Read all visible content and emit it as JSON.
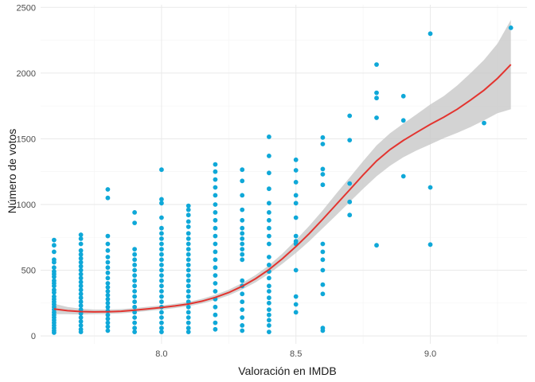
{
  "chart_data": {
    "type": "scatter",
    "title": "",
    "xlabel": "Valoración en IMDB",
    "ylabel": "Número de votos",
    "xlim": [
      7.55,
      9.36
    ],
    "ylim": [
      -60,
      2520
    ],
    "xticks": [
      8.0,
      8.5,
      9.0
    ],
    "xtick_labels": [
      "8.0",
      "8.5",
      "9.0"
    ],
    "xminor": [
      7.75,
      8.25,
      8.75,
      9.25
    ],
    "yticks": [
      0,
      500,
      1000,
      1500,
      2000,
      2500
    ],
    "ytick_labels": [
      "0",
      "500",
      "1000",
      "1500",
      "2000",
      "2500"
    ],
    "yminor": [
      250,
      750,
      1250,
      1750,
      2250
    ],
    "grid": true,
    "legend": "none",
    "colors": {
      "points": "#0fa8d8",
      "smooth": "#e3342f",
      "band": "#c8c8c8"
    },
    "points": [
      [
        7.6,
        730
      ],
      [
        7.6,
        690
      ],
      [
        7.6,
        640
      ],
      [
        7.6,
        580
      ],
      [
        7.6,
        560
      ],
      [
        7.6,
        520
      ],
      [
        7.6,
        490
      ],
      [
        7.6,
        470
      ],
      [
        7.6,
        450
      ],
      [
        7.6,
        420
      ],
      [
        7.6,
        400
      ],
      [
        7.6,
        380
      ],
      [
        7.6,
        350
      ],
      [
        7.6,
        330
      ],
      [
        7.6,
        300
      ],
      [
        7.6,
        280
      ],
      [
        7.6,
        260
      ],
      [
        7.6,
        240
      ],
      [
        7.6,
        220
      ],
      [
        7.6,
        200
      ],
      [
        7.6,
        180
      ],
      [
        7.6,
        160
      ],
      [
        7.6,
        140
      ],
      [
        7.6,
        120
      ],
      [
        7.6,
        100
      ],
      [
        7.6,
        80
      ],
      [
        7.6,
        60
      ],
      [
        7.6,
        40
      ],
      [
        7.6,
        25
      ],
      [
        7.7,
        770
      ],
      [
        7.7,
        740
      ],
      [
        7.7,
        700
      ],
      [
        7.7,
        650
      ],
      [
        7.7,
        620
      ],
      [
        7.7,
        590
      ],
      [
        7.7,
        560
      ],
      [
        7.7,
        530
      ],
      [
        7.7,
        500
      ],
      [
        7.7,
        470
      ],
      [
        7.7,
        440
      ],
      [
        7.7,
        410
      ],
      [
        7.7,
        380
      ],
      [
        7.7,
        350
      ],
      [
        7.7,
        320
      ],
      [
        7.7,
        290
      ],
      [
        7.7,
        260
      ],
      [
        7.7,
        230
      ],
      [
        7.7,
        200
      ],
      [
        7.7,
        170
      ],
      [
        7.7,
        140
      ],
      [
        7.7,
        110
      ],
      [
        7.7,
        80
      ],
      [
        7.7,
        50
      ],
      [
        7.7,
        30
      ],
      [
        7.8,
        1115
      ],
      [
        7.8,
        1050
      ],
      [
        7.8,
        760
      ],
      [
        7.8,
        700
      ],
      [
        7.8,
        650
      ],
      [
        7.8,
        600
      ],
      [
        7.8,
        560
      ],
      [
        7.8,
        520
      ],
      [
        7.8,
        480
      ],
      [
        7.8,
        440
      ],
      [
        7.8,
        400
      ],
      [
        7.8,
        370
      ],
      [
        7.8,
        340
      ],
      [
        7.8,
        310
      ],
      [
        7.8,
        280
      ],
      [
        7.8,
        250
      ],
      [
        7.8,
        220
      ],
      [
        7.8,
        190
      ],
      [
        7.8,
        160
      ],
      [
        7.8,
        130
      ],
      [
        7.8,
        100
      ],
      [
        7.8,
        70
      ],
      [
        7.8,
        40
      ],
      [
        7.9,
        940
      ],
      [
        7.9,
        860
      ],
      [
        7.9,
        660
      ],
      [
        7.9,
        620
      ],
      [
        7.9,
        580
      ],
      [
        7.9,
        540
      ],
      [
        7.9,
        500
      ],
      [
        7.9,
        460
      ],
      [
        7.9,
        420
      ],
      [
        7.9,
        380
      ],
      [
        7.9,
        340
      ],
      [
        7.9,
        300
      ],
      [
        7.9,
        260
      ],
      [
        7.9,
        220
      ],
      [
        7.9,
        180
      ],
      [
        7.9,
        140
      ],
      [
        7.9,
        100
      ],
      [
        7.9,
        60
      ],
      [
        7.9,
        30
      ],
      [
        8.0,
        1265
      ],
      [
        8.0,
        1040
      ],
      [
        8.0,
        1010
      ],
      [
        8.0,
        900
      ],
      [
        8.0,
        820
      ],
      [
        8.0,
        780
      ],
      [
        8.0,
        740
      ],
      [
        8.0,
        700
      ],
      [
        8.0,
        660
      ],
      [
        8.0,
        620
      ],
      [
        8.0,
        580
      ],
      [
        8.0,
        540
      ],
      [
        8.0,
        500
      ],
      [
        8.0,
        460
      ],
      [
        8.0,
        420
      ],
      [
        8.0,
        380
      ],
      [
        8.0,
        340
      ],
      [
        8.0,
        300
      ],
      [
        8.0,
        260
      ],
      [
        8.0,
        220
      ],
      [
        8.0,
        180
      ],
      [
        8.0,
        140
      ],
      [
        8.0,
        100
      ],
      [
        8.0,
        60
      ],
      [
        8.0,
        30
      ],
      [
        8.1,
        990
      ],
      [
        8.1,
        960
      ],
      [
        8.1,
        920
      ],
      [
        8.1,
        870
      ],
      [
        8.1,
        830
      ],
      [
        8.1,
        780
      ],
      [
        8.1,
        740
      ],
      [
        8.1,
        700
      ],
      [
        8.1,
        660
      ],
      [
        8.1,
        620
      ],
      [
        8.1,
        580
      ],
      [
        8.1,
        540
      ],
      [
        8.1,
        500
      ],
      [
        8.1,
        460
      ],
      [
        8.1,
        420
      ],
      [
        8.1,
        380
      ],
      [
        8.1,
        340
      ],
      [
        8.1,
        300
      ],
      [
        8.1,
        260
      ],
      [
        8.1,
        220
      ],
      [
        8.1,
        180
      ],
      [
        8.1,
        140
      ],
      [
        8.1,
        100
      ],
      [
        8.1,
        60
      ],
      [
        8.1,
        30
      ],
      [
        8.2,
        1305
      ],
      [
        8.2,
        1250
      ],
      [
        8.2,
        1190
      ],
      [
        8.2,
        1130
      ],
      [
        8.2,
        1070
      ],
      [
        8.2,
        1000
      ],
      [
        8.2,
        940
      ],
      [
        8.2,
        880
      ],
      [
        8.2,
        820
      ],
      [
        8.2,
        760
      ],
      [
        8.2,
        700
      ],
      [
        8.2,
        640
      ],
      [
        8.2,
        580
      ],
      [
        8.2,
        520
      ],
      [
        8.2,
        460
      ],
      [
        8.2,
        400
      ],
      [
        8.2,
        340
      ],
      [
        8.2,
        280
      ],
      [
        8.2,
        220
      ],
      [
        8.2,
        160
      ],
      [
        8.2,
        100
      ],
      [
        8.2,
        50
      ],
      [
        8.3,
        1265
      ],
      [
        8.3,
        1180
      ],
      [
        8.3,
        1070
      ],
      [
        8.3,
        960
      ],
      [
        8.3,
        880
      ],
      [
        8.3,
        820
      ],
      [
        8.3,
        780
      ],
      [
        8.3,
        740
      ],
      [
        8.3,
        700
      ],
      [
        8.3,
        660
      ],
      [
        8.3,
        620
      ],
      [
        8.3,
        580
      ],
      [
        8.3,
        420
      ],
      [
        8.3,
        380
      ],
      [
        8.3,
        320
      ],
      [
        8.3,
        260
      ],
      [
        8.3,
        200
      ],
      [
        8.3,
        140
      ],
      [
        8.3,
        80
      ],
      [
        8.3,
        40
      ],
      [
        8.4,
        1515
      ],
      [
        8.4,
        1370
      ],
      [
        8.4,
        1240
      ],
      [
        8.4,
        1120
      ],
      [
        8.4,
        1010
      ],
      [
        8.4,
        940
      ],
      [
        8.4,
        880
      ],
      [
        8.4,
        820
      ],
      [
        8.4,
        760
      ],
      [
        8.4,
        700
      ],
      [
        8.4,
        600
      ],
      [
        8.4,
        540
      ],
      [
        8.4,
        490
      ],
      [
        8.4,
        440
      ],
      [
        8.4,
        380
      ],
      [
        8.4,
        340
      ],
      [
        8.4,
        290
      ],
      [
        8.4,
        250
      ],
      [
        8.4,
        200
      ],
      [
        8.4,
        160
      ],
      [
        8.4,
        120
      ],
      [
        8.4,
        80
      ],
      [
        8.4,
        30
      ],
      [
        8.5,
        1340
      ],
      [
        8.5,
        1260
      ],
      [
        8.5,
        1170
      ],
      [
        8.5,
        1070
      ],
      [
        8.5,
        1010
      ],
      [
        8.5,
        900
      ],
      [
        8.5,
        760
      ],
      [
        8.5,
        720
      ],
      [
        8.5,
        700
      ],
      [
        8.5,
        500
      ],
      [
        8.5,
        300
      ],
      [
        8.5,
        240
      ],
      [
        8.5,
        180
      ],
      [
        8.6,
        1510
      ],
      [
        8.6,
        1460
      ],
      [
        8.6,
        1270
      ],
      [
        8.6,
        1230
      ],
      [
        8.6,
        1150
      ],
      [
        8.6,
        700
      ],
      [
        8.6,
        640
      ],
      [
        8.6,
        580
      ],
      [
        8.6,
        500
      ],
      [
        8.6,
        390
      ],
      [
        8.6,
        320
      ],
      [
        8.6,
        60
      ],
      [
        8.6,
        40
      ],
      [
        8.7,
        1675
      ],
      [
        8.7,
        1490
      ],
      [
        8.7,
        1160
      ],
      [
        8.7,
        1020
      ],
      [
        8.7,
        920
      ],
      [
        8.8,
        2065
      ],
      [
        8.8,
        1850
      ],
      [
        8.8,
        1810
      ],
      [
        8.8,
        1660
      ],
      [
        8.8,
        690
      ],
      [
        8.9,
        1825
      ],
      [
        8.9,
        1640
      ],
      [
        8.9,
        1215
      ],
      [
        9.0,
        2300
      ],
      [
        9.0,
        1130
      ],
      [
        9.0,
        695
      ],
      [
        9.2,
        1620
      ],
      [
        9.3,
        2345
      ]
    ],
    "smooth": {
      "x": [
        7.6,
        7.65,
        7.7,
        7.75,
        7.8,
        7.85,
        7.9,
        7.95,
        8.0,
        8.05,
        8.1,
        8.15,
        8.2,
        8.25,
        8.3,
        8.35,
        8.4,
        8.45,
        8.5,
        8.55,
        8.6,
        8.65,
        8.7,
        8.75,
        8.8,
        8.85,
        8.9,
        8.95,
        9.0,
        9.05,
        9.1,
        9.15,
        9.2,
        9.25,
        9.3
      ],
      "y": [
        205,
        192,
        185,
        183,
        184,
        188,
        196,
        206,
        216,
        228,
        243,
        264,
        293,
        330,
        378,
        436,
        505,
        588,
        680,
        780,
        888,
        1000,
        1112,
        1225,
        1332,
        1418,
        1488,
        1550,
        1610,
        1665,
        1725,
        1795,
        1870,
        1960,
        2065
      ],
      "lower": [
        165,
        165,
        163,
        165,
        167,
        172,
        180,
        190,
        200,
        212,
        226,
        246,
        273,
        308,
        353,
        408,
        473,
        549,
        631,
        721,
        820,
        918,
        1019,
        1120,
        1215,
        1294,
        1360,
        1412,
        1458,
        1505,
        1545,
        1590,
        1640,
        1695,
        1725
      ],
      "upper": [
        245,
        220,
        207,
        201,
        201,
        204,
        212,
        222,
        232,
        244,
        260,
        282,
        313,
        352,
        403,
        464,
        537,
        627,
        729,
        839,
        956,
        1082,
        1205,
        1330,
        1449,
        1542,
        1616,
        1688,
        1762,
        1825,
        1905,
        2000,
        2100,
        2225,
        2405
      ]
    }
  }
}
